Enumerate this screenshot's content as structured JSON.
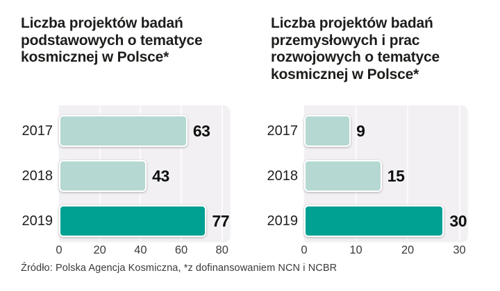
{
  "colors": {
    "bar_default": "#b5d8d2",
    "bar_highlight": "#00a093",
    "plot_background": "#f2f0f3",
    "gridline": "#fbfafc",
    "title_text": "#1d1d1b",
    "tick_text": "#3c3c3c"
  },
  "footer": {
    "source": "Źródło: Polska Agencja Kosmiczna, *z dofinansowaniem NCN i NCBR"
  },
  "chart_data": [
    {
      "type": "bar",
      "orientation": "horizontal",
      "title": "Liczba projektów badań\npodstawowych o tematyce\nkosmicznej w Polsce*",
      "categories": [
        "2017",
        "2018",
        "2019"
      ],
      "values": [
        63,
        43,
        77
      ],
      "highlight_index": 2,
      "xticks": [
        0,
        20,
        40,
        60,
        80
      ],
      "xlim": [
        0,
        83.5
      ],
      "grid": true,
      "value_labels": true,
      "legend": "none"
    },
    {
      "type": "bar",
      "orientation": "horizontal",
      "title": "Liczba projektów badań\nprzemysłowych i prac\nrozwojowych o tematyce\nkosmicznej w Polsce*",
      "categories": [
        "2017",
        "2018",
        "2019"
      ],
      "values": [
        9,
        15,
        30
      ],
      "highlight_index": 2,
      "xticks": [
        0,
        10,
        20,
        30
      ],
      "xlim": [
        0,
        31.4
      ],
      "grid": true,
      "value_labels": true,
      "legend": "none"
    }
  ]
}
